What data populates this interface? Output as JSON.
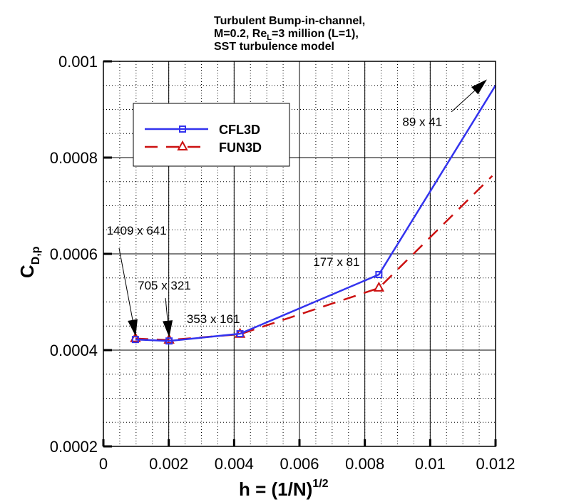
{
  "chart_data": {
    "type": "line",
    "title_lines": [
      "Turbulent Bump-in-channel,",
      "M=0.2, Re",
      "=3 million (L=1),",
      "SST turbulence model"
    ],
    "title_sub": "L",
    "xlabel": "h = (1/N)",
    "xlabel_sup": "1/2",
    "ylabel": "C",
    "ylabel_sub": "D,p",
    "xlim": [
      0,
      0.012
    ],
    "ylim": [
      0.0002,
      0.001
    ],
    "xticks": [
      "0",
      "0.002",
      "0.004",
      "0.006",
      "0.008",
      "0.01",
      "0.012"
    ],
    "yticks": [
      "0.0002",
      "0.0004",
      "0.0006",
      "0.0008",
      "0.001"
    ],
    "grid": true,
    "legend_position": "upper-left",
    "series": [
      {
        "name": "CFL3D",
        "color": "#3333ee",
        "style": "solid",
        "marker": "square",
        "x": [
          0.00098,
          0.00201,
          0.00418,
          0.00843,
          0.012
        ],
        "y": [
          0.000422,
          0.000419,
          0.000434,
          0.000557,
          0.00095
        ],
        "marker_count": 4
      },
      {
        "name": "FUN3D",
        "color": "#cc1111",
        "style": "dashed",
        "marker": "triangle",
        "x": [
          0.00098,
          0.00201,
          0.00418,
          0.00843,
          0.0119
        ],
        "y": [
          0.000424,
          0.000421,
          0.000433,
          0.000529,
          0.000762
        ],
        "marker_count": 4
      }
    ],
    "annotations": [
      {
        "text": "1409 x 641",
        "tx": 0.0001,
        "ty": 0.00064,
        "arrow_from": [
          0.00048,
          0.000612
        ],
        "arrow_to": [
          0.00098,
          0.000432
        ]
      },
      {
        "text": "705 x 321",
        "tx": 0.00105,
        "ty": 0.000526,
        "arrow_from": [
          0.0019,
          0.000508
        ],
        "arrow_to": [
          0.00201,
          0.00043
        ]
      },
      {
        "text": "353 x 161",
        "tx": 0.00255,
        "ty": 0.000456
      },
      {
        "text": "177 x 81",
        "tx": 0.00642,
        "ty": 0.000575
      },
      {
        "text": "89 x 41",
        "tx": 0.00915,
        "ty": 0.000866,
        "arrow_from": [
          0.01065,
          0.000895
        ],
        "arrow_to": [
          0.0117,
          0.00096
        ]
      }
    ]
  }
}
